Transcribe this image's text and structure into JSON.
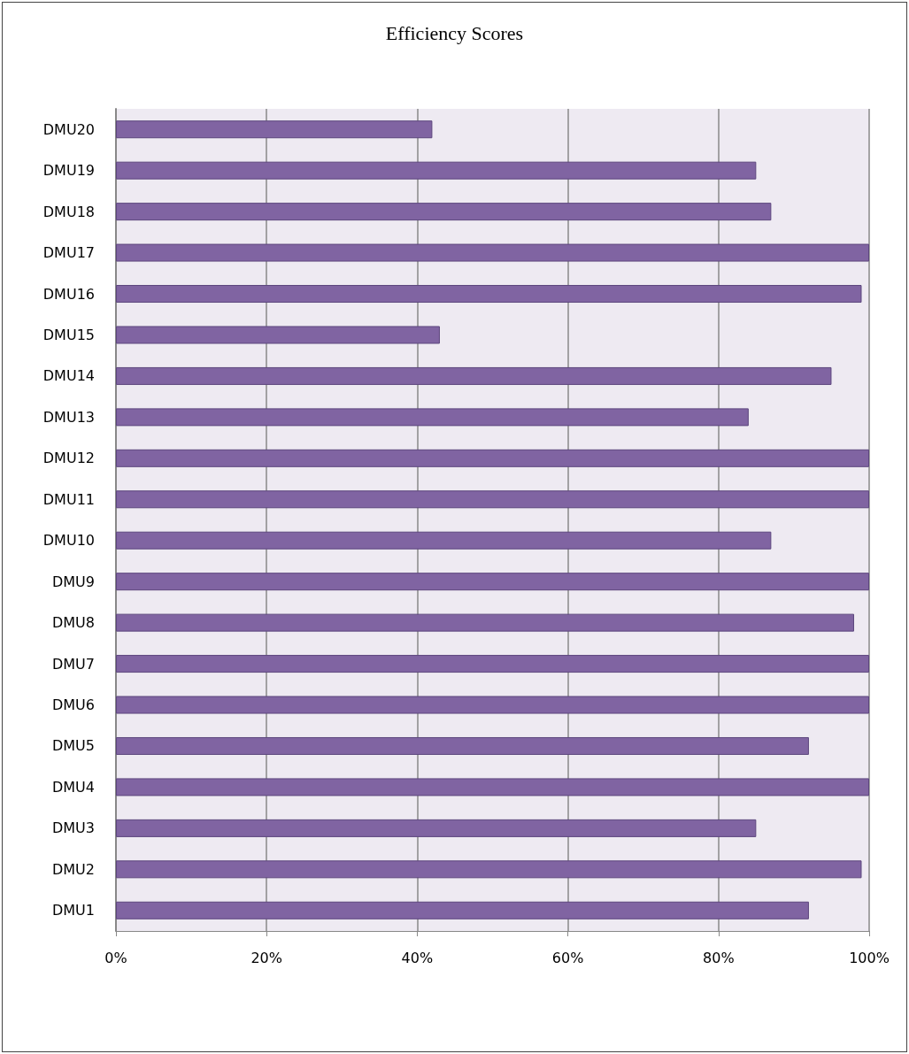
{
  "chart_data": {
    "type": "bar",
    "orientation": "horizontal",
    "title": "Efficiency Scores",
    "categories": [
      "DMU20",
      "DMU19",
      "DMU18",
      "DMU17",
      "DMU16",
      "DMU15",
      "DMU14",
      "DMU13",
      "DMU12",
      "DMU11",
      "DMU10",
      "DMU9",
      "DMU8",
      "DMU7",
      "DMU6",
      "DMU5",
      "DMU4",
      "DMU3",
      "DMU2",
      "DMU1"
    ],
    "values": [
      42,
      85,
      87,
      100,
      99,
      43,
      95,
      84,
      100,
      100,
      87,
      100,
      98,
      100,
      100,
      92,
      100,
      85,
      99,
      92
    ],
    "color": "#8064a2",
    "xlim": [
      0,
      100
    ],
    "xticks": [
      {
        "value": 0,
        "label": "0%"
      },
      {
        "value": 20,
        "label": "20%"
      },
      {
        "value": 40,
        "label": "40%"
      },
      {
        "value": 60,
        "label": "60%"
      },
      {
        "value": 80,
        "label": "80%"
      },
      {
        "value": 100,
        "label": "100%"
      }
    ],
    "grid": "x"
  }
}
